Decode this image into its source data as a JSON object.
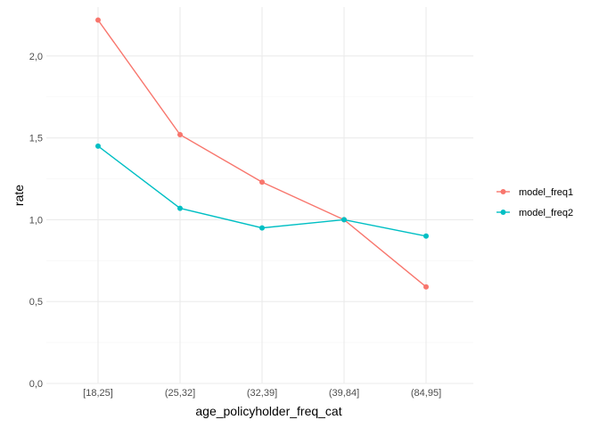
{
  "chart_data": {
    "type": "line",
    "title": "",
    "xlabel": "age_policyholder_freq_cat",
    "ylabel": "rate",
    "categories": [
      "[18,25]",
      "(25,32]",
      "(32,39]",
      "(39,84]",
      "(84,95]"
    ],
    "ylim": [
      0,
      2.2
    ],
    "yticks": [
      0,
      0.5,
      1,
      1.5,
      2
    ],
    "ytick_labels": [
      "0,0",
      "0,5",
      "1,0",
      "1,5",
      "2,0"
    ],
    "grid": true,
    "legend_position": "right",
    "series": [
      {
        "name": "model_freq1",
        "color": "#F8766D",
        "values": [
          2.22,
          1.52,
          1.23,
          1.0,
          0.59
        ]
      },
      {
        "name": "model_freq2",
        "color": "#00BFC4",
        "values": [
          1.45,
          1.07,
          0.95,
          1.0,
          0.9
        ]
      }
    ]
  }
}
